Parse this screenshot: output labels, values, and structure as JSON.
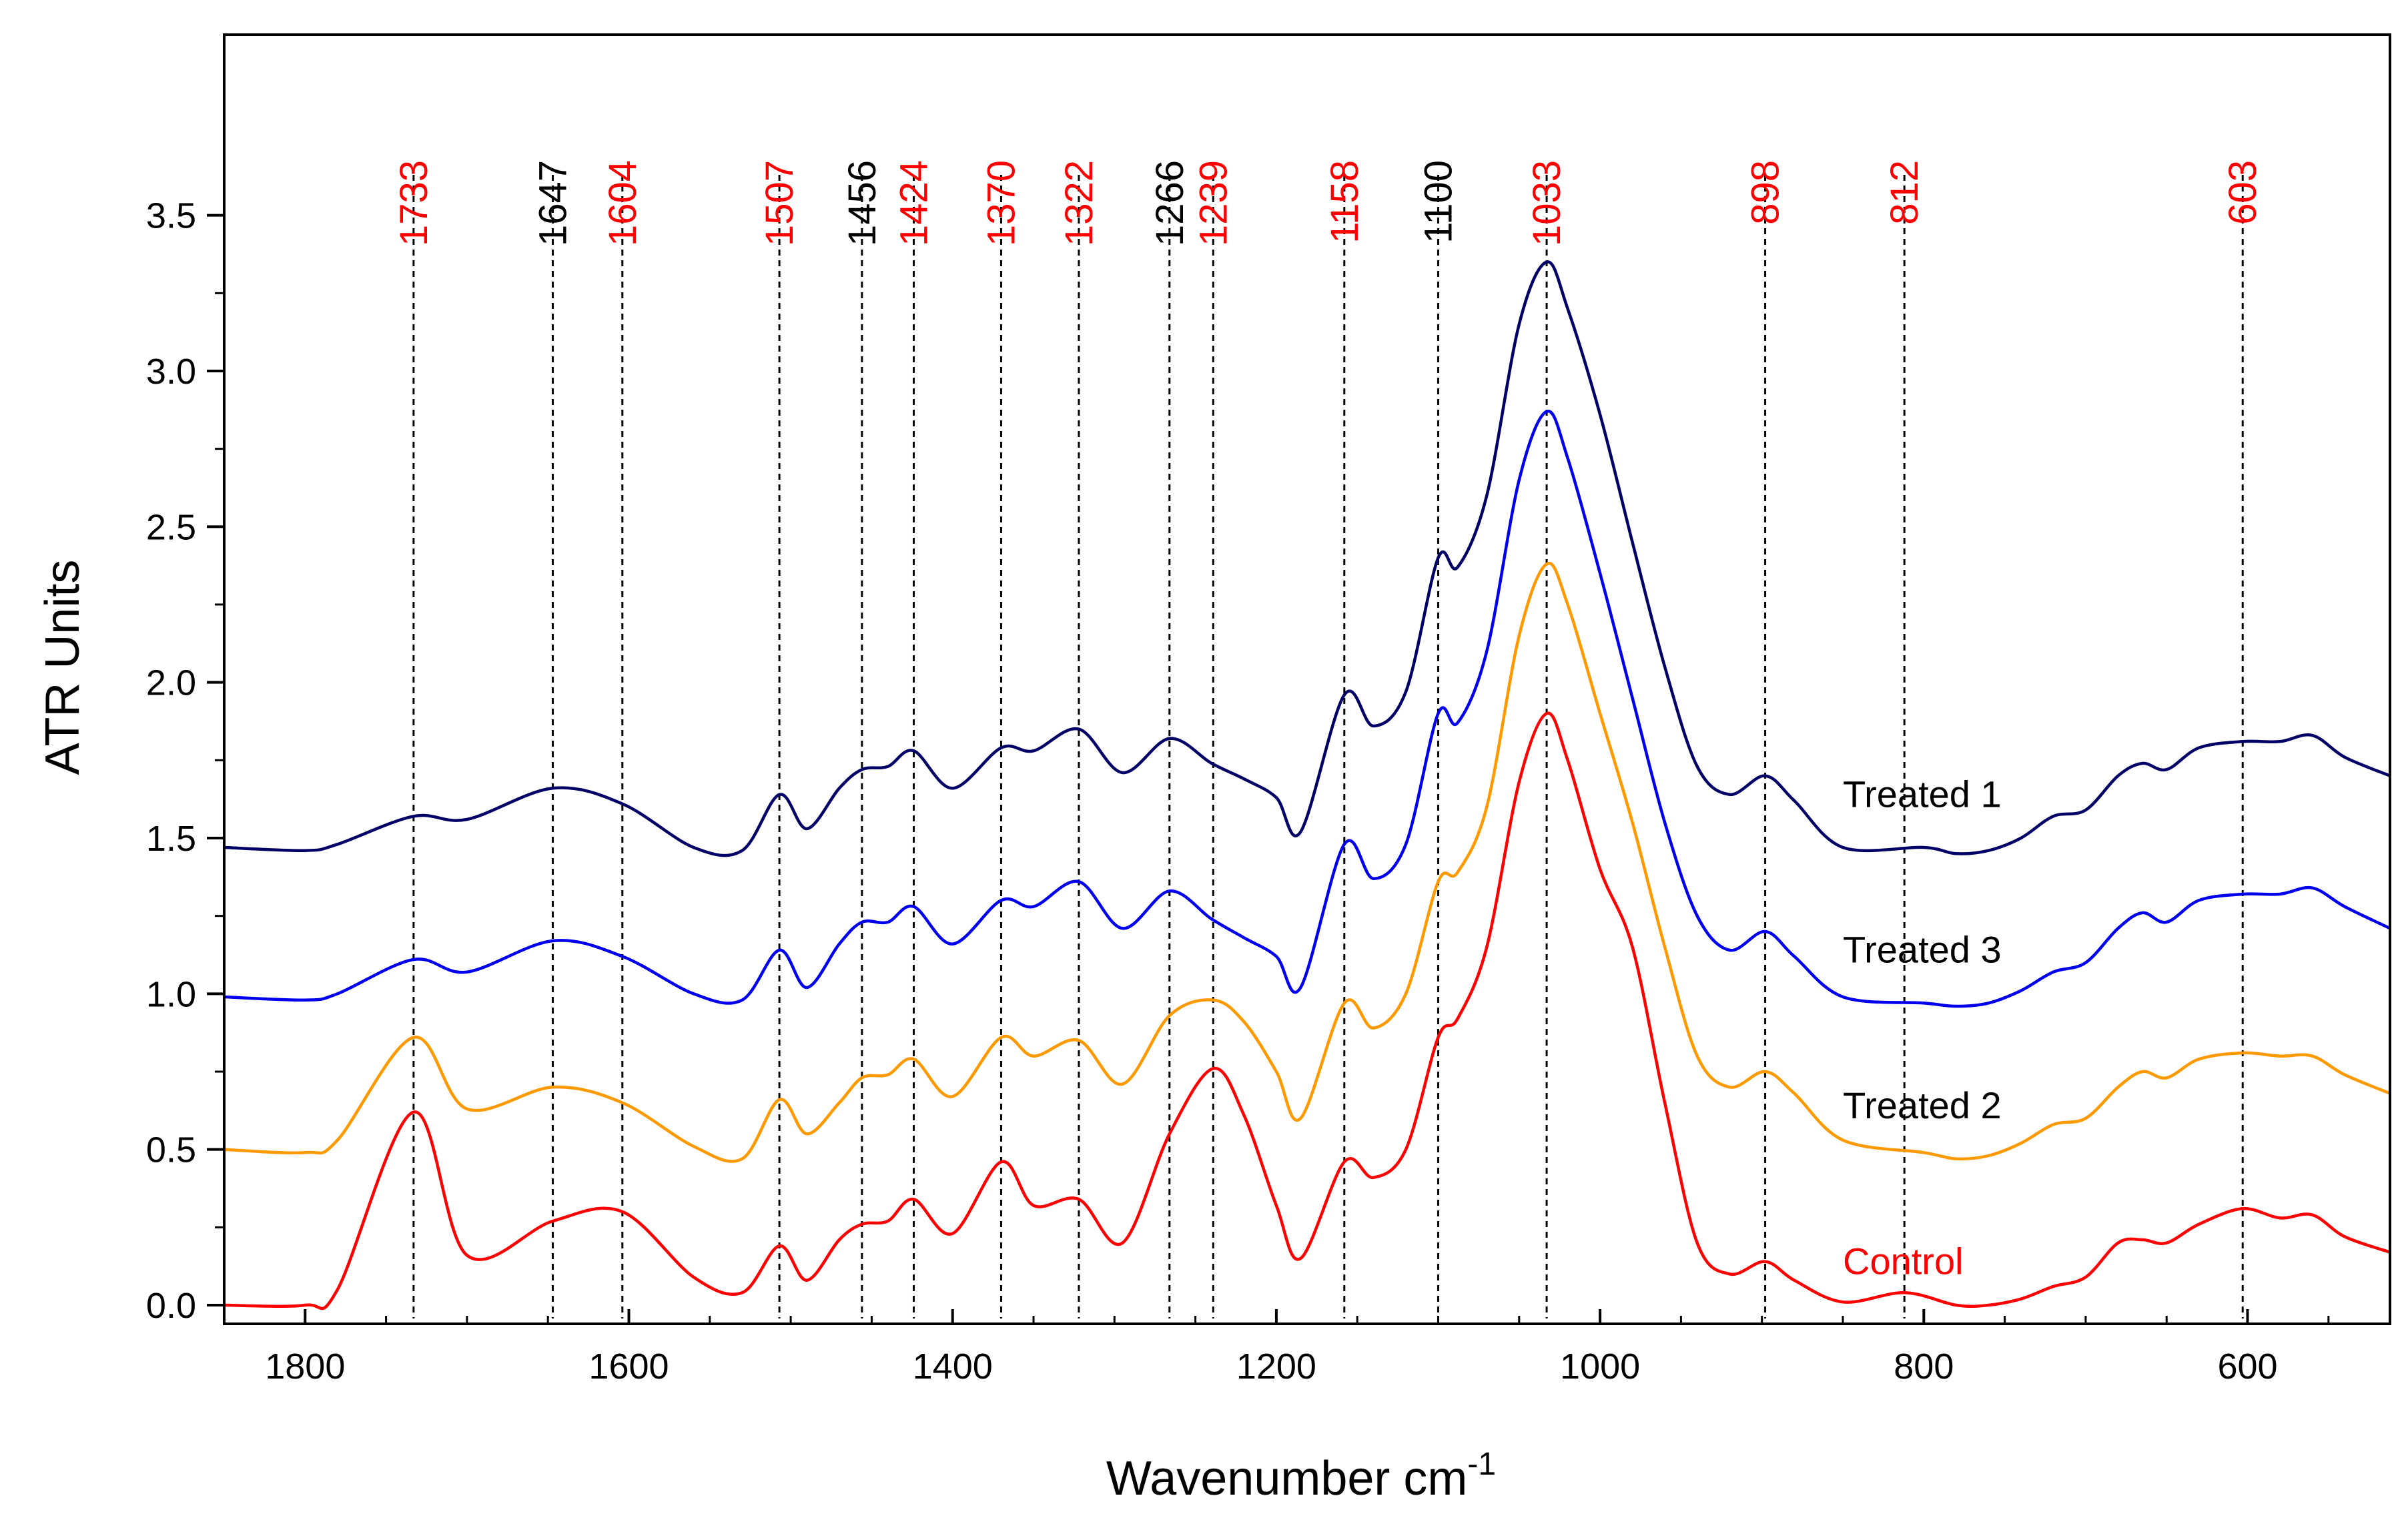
{
  "chart_data": {
    "type": "line",
    "title": "",
    "xlabel": "Wavenumber cm",
    "xlabel_superscript": "-1",
    "ylabel": "ATR Units",
    "xlim": [
      1850,
      512
    ],
    "ylim": [
      -0.06,
      4.08
    ],
    "x_reversed": true,
    "x_ticks": [
      1800,
      1600,
      1400,
      1200,
      1000,
      800,
      600
    ],
    "x_tick_labels": [
      "1800",
      "1600",
      "1400",
      "1200",
      "1000",
      "800",
      "600"
    ],
    "y_ticks": [
      0.0,
      0.5,
      1.0,
      1.5,
      2.0,
      2.5,
      3.0,
      3.5
    ],
    "y_tick_labels": [
      "0.0",
      "0.5",
      "1.0",
      "1.5",
      "2.0",
      "2.5",
      "3.0",
      "3.5"
    ],
    "grid": false,
    "peak_markers": [
      {
        "x": 1733,
        "label": "1733",
        "color": "#ff0000"
      },
      {
        "x": 1647,
        "label": "1647",
        "color": "#000000"
      },
      {
        "x": 1604,
        "label": "1604",
        "color": "#ff0000"
      },
      {
        "x": 1507,
        "label": "1507",
        "color": "#ff0000"
      },
      {
        "x": 1456,
        "label": "1456",
        "color": "#000000"
      },
      {
        "x": 1424,
        "label": "1424",
        "color": "#ff0000"
      },
      {
        "x": 1370,
        "label": "1370",
        "color": "#ff0000"
      },
      {
        "x": 1322,
        "label": "1322",
        "color": "#ff0000"
      },
      {
        "x": 1266,
        "label": "1266",
        "color": "#000000"
      },
      {
        "x": 1239,
        "label": "1239",
        "color": "#ff0000"
      },
      {
        "x": 1158,
        "label": "1158",
        "color": "#ff0000"
      },
      {
        "x": 1100,
        "label": "1100",
        "color": "#000000"
      },
      {
        "x": 1033,
        "label": "1033",
        "color": "#ff0000"
      },
      {
        "x": 898,
        "label": "898",
        "color": "#ff0000"
      },
      {
        "x": 812,
        "label": "812",
        "color": "#ff0000"
      },
      {
        "x": 603,
        "label": "603",
        "color": "#ff0000"
      }
    ],
    "series": [
      {
        "name": "Treated 1",
        "color": "#000066",
        "label_color": "#000000",
        "label_at": [
          850,
          1.6
        ],
        "x": [
          1850,
          1800,
          1780,
          1733,
          1700,
          1647,
          1604,
          1560,
          1530,
          1507,
          1490,
          1470,
          1456,
          1440,
          1424,
          1400,
          1370,
          1350,
          1322,
          1295,
          1266,
          1240,
          1220,
          1200,
          1185,
          1158,
          1140,
          1120,
          1100,
          1088,
          1070,
          1050,
          1033,
          1020,
          1000,
          980,
          960,
          940,
          920,
          898,
          880,
          850,
          800,
          780,
          760,
          740,
          720,
          700,
          680,
          665,
          650,
          630,
          603,
          580,
          560,
          540,
          512
        ],
        "values": [
          1.47,
          1.46,
          1.48,
          1.57,
          1.56,
          1.66,
          1.61,
          1.47,
          1.46,
          1.64,
          1.53,
          1.66,
          1.72,
          1.73,
          1.78,
          1.66,
          1.79,
          1.78,
          1.85,
          1.71,
          1.82,
          1.74,
          1.69,
          1.63,
          1.52,
          1.96,
          1.86,
          1.97,
          2.4,
          2.37,
          2.6,
          3.15,
          3.35,
          3.2,
          2.86,
          2.45,
          2.05,
          1.73,
          1.64,
          1.7,
          1.62,
          1.47,
          1.47,
          1.45,
          1.46,
          1.5,
          1.57,
          1.59,
          1.7,
          1.74,
          1.72,
          1.79,
          1.81,
          1.81,
          1.83,
          1.76,
          1.7
        ]
      },
      {
        "name": "Treated 3",
        "color": "#0000ee",
        "label_color": "#000000",
        "label_at": [
          850,
          1.1
        ],
        "x": [
          1850,
          1800,
          1780,
          1733,
          1700,
          1647,
          1604,
          1560,
          1530,
          1507,
          1490,
          1470,
          1456,
          1440,
          1424,
          1400,
          1370,
          1350,
          1322,
          1295,
          1266,
          1240,
          1220,
          1200,
          1185,
          1158,
          1140,
          1120,
          1100,
          1088,
          1070,
          1050,
          1033,
          1020,
          1000,
          980,
          960,
          940,
          920,
          898,
          880,
          850,
          800,
          780,
          760,
          740,
          720,
          700,
          680,
          665,
          650,
          630,
          603,
          580,
          560,
          540,
          512
        ],
        "values": [
          0.99,
          0.98,
          1.0,
          1.11,
          1.07,
          1.17,
          1.12,
          1.0,
          0.98,
          1.14,
          1.02,
          1.16,
          1.23,
          1.23,
          1.28,
          1.16,
          1.3,
          1.28,
          1.36,
          1.21,
          1.33,
          1.24,
          1.18,
          1.12,
          1.02,
          1.48,
          1.37,
          1.48,
          1.9,
          1.87,
          2.1,
          2.65,
          2.87,
          2.72,
          2.35,
          1.95,
          1.55,
          1.25,
          1.14,
          1.2,
          1.12,
          0.99,
          0.97,
          0.96,
          0.97,
          1.01,
          1.07,
          1.1,
          1.21,
          1.26,
          1.23,
          1.3,
          1.32,
          1.32,
          1.34,
          1.28,
          1.21
        ]
      },
      {
        "name": "Treated 2",
        "color": "#ff9900",
        "label_color": "#000000",
        "label_at": [
          850,
          0.6
        ],
        "x": [
          1850,
          1800,
          1780,
          1733,
          1700,
          1647,
          1604,
          1560,
          1530,
          1507,
          1490,
          1470,
          1456,
          1440,
          1424,
          1400,
          1370,
          1350,
          1322,
          1295,
          1266,
          1239,
          1220,
          1200,
          1185,
          1158,
          1140,
          1120,
          1100,
          1088,
          1070,
          1050,
          1033,
          1020,
          1000,
          980,
          960,
          940,
          920,
          898,
          880,
          850,
          800,
          780,
          760,
          740,
          720,
          700,
          680,
          665,
          650,
          630,
          603,
          580,
          560,
          540,
          512
        ],
        "values": [
          0.5,
          0.49,
          0.53,
          0.86,
          0.63,
          0.7,
          0.65,
          0.51,
          0.47,
          0.66,
          0.55,
          0.65,
          0.73,
          0.74,
          0.79,
          0.67,
          0.86,
          0.8,
          0.85,
          0.71,
          0.93,
          0.98,
          0.91,
          0.75,
          0.6,
          0.97,
          0.89,
          1.0,
          1.36,
          1.39,
          1.6,
          2.15,
          2.38,
          2.25,
          1.9,
          1.55,
          1.15,
          0.8,
          0.7,
          0.75,
          0.68,
          0.53,
          0.49,
          0.47,
          0.48,
          0.52,
          0.58,
          0.6,
          0.7,
          0.75,
          0.73,
          0.79,
          0.81,
          0.8,
          0.8,
          0.74,
          0.68
        ]
      },
      {
        "name": "Control",
        "color": "#ff0000",
        "label_color": "#ff0000",
        "label_at": [
          850,
          0.1
        ],
        "x": [
          1850,
          1800,
          1780,
          1733,
          1700,
          1647,
          1604,
          1560,
          1530,
          1507,
          1490,
          1470,
          1456,
          1440,
          1424,
          1400,
          1370,
          1350,
          1322,
          1295,
          1266,
          1239,
          1220,
          1200,
          1185,
          1158,
          1140,
          1120,
          1100,
          1088,
          1070,
          1050,
          1033,
          1020,
          1000,
          980,
          960,
          940,
          920,
          898,
          880,
          850,
          812,
          780,
          760,
          740,
          720,
          700,
          680,
          665,
          650,
          630,
          603,
          580,
          560,
          540,
          512
        ],
        "values": [
          0.0,
          0.0,
          0.05,
          0.62,
          0.16,
          0.27,
          0.3,
          0.09,
          0.04,
          0.19,
          0.08,
          0.21,
          0.26,
          0.27,
          0.34,
          0.23,
          0.46,
          0.32,
          0.34,
          0.2,
          0.55,
          0.76,
          0.61,
          0.32,
          0.15,
          0.46,
          0.41,
          0.5,
          0.86,
          0.92,
          1.15,
          1.68,
          1.9,
          1.75,
          1.4,
          1.15,
          0.65,
          0.2,
          0.1,
          0.14,
          0.08,
          0.01,
          0.04,
          0.0,
          0.0,
          0.02,
          0.06,
          0.09,
          0.2,
          0.21,
          0.2,
          0.26,
          0.31,
          0.28,
          0.29,
          0.22,
          0.17
        ]
      }
    ]
  }
}
